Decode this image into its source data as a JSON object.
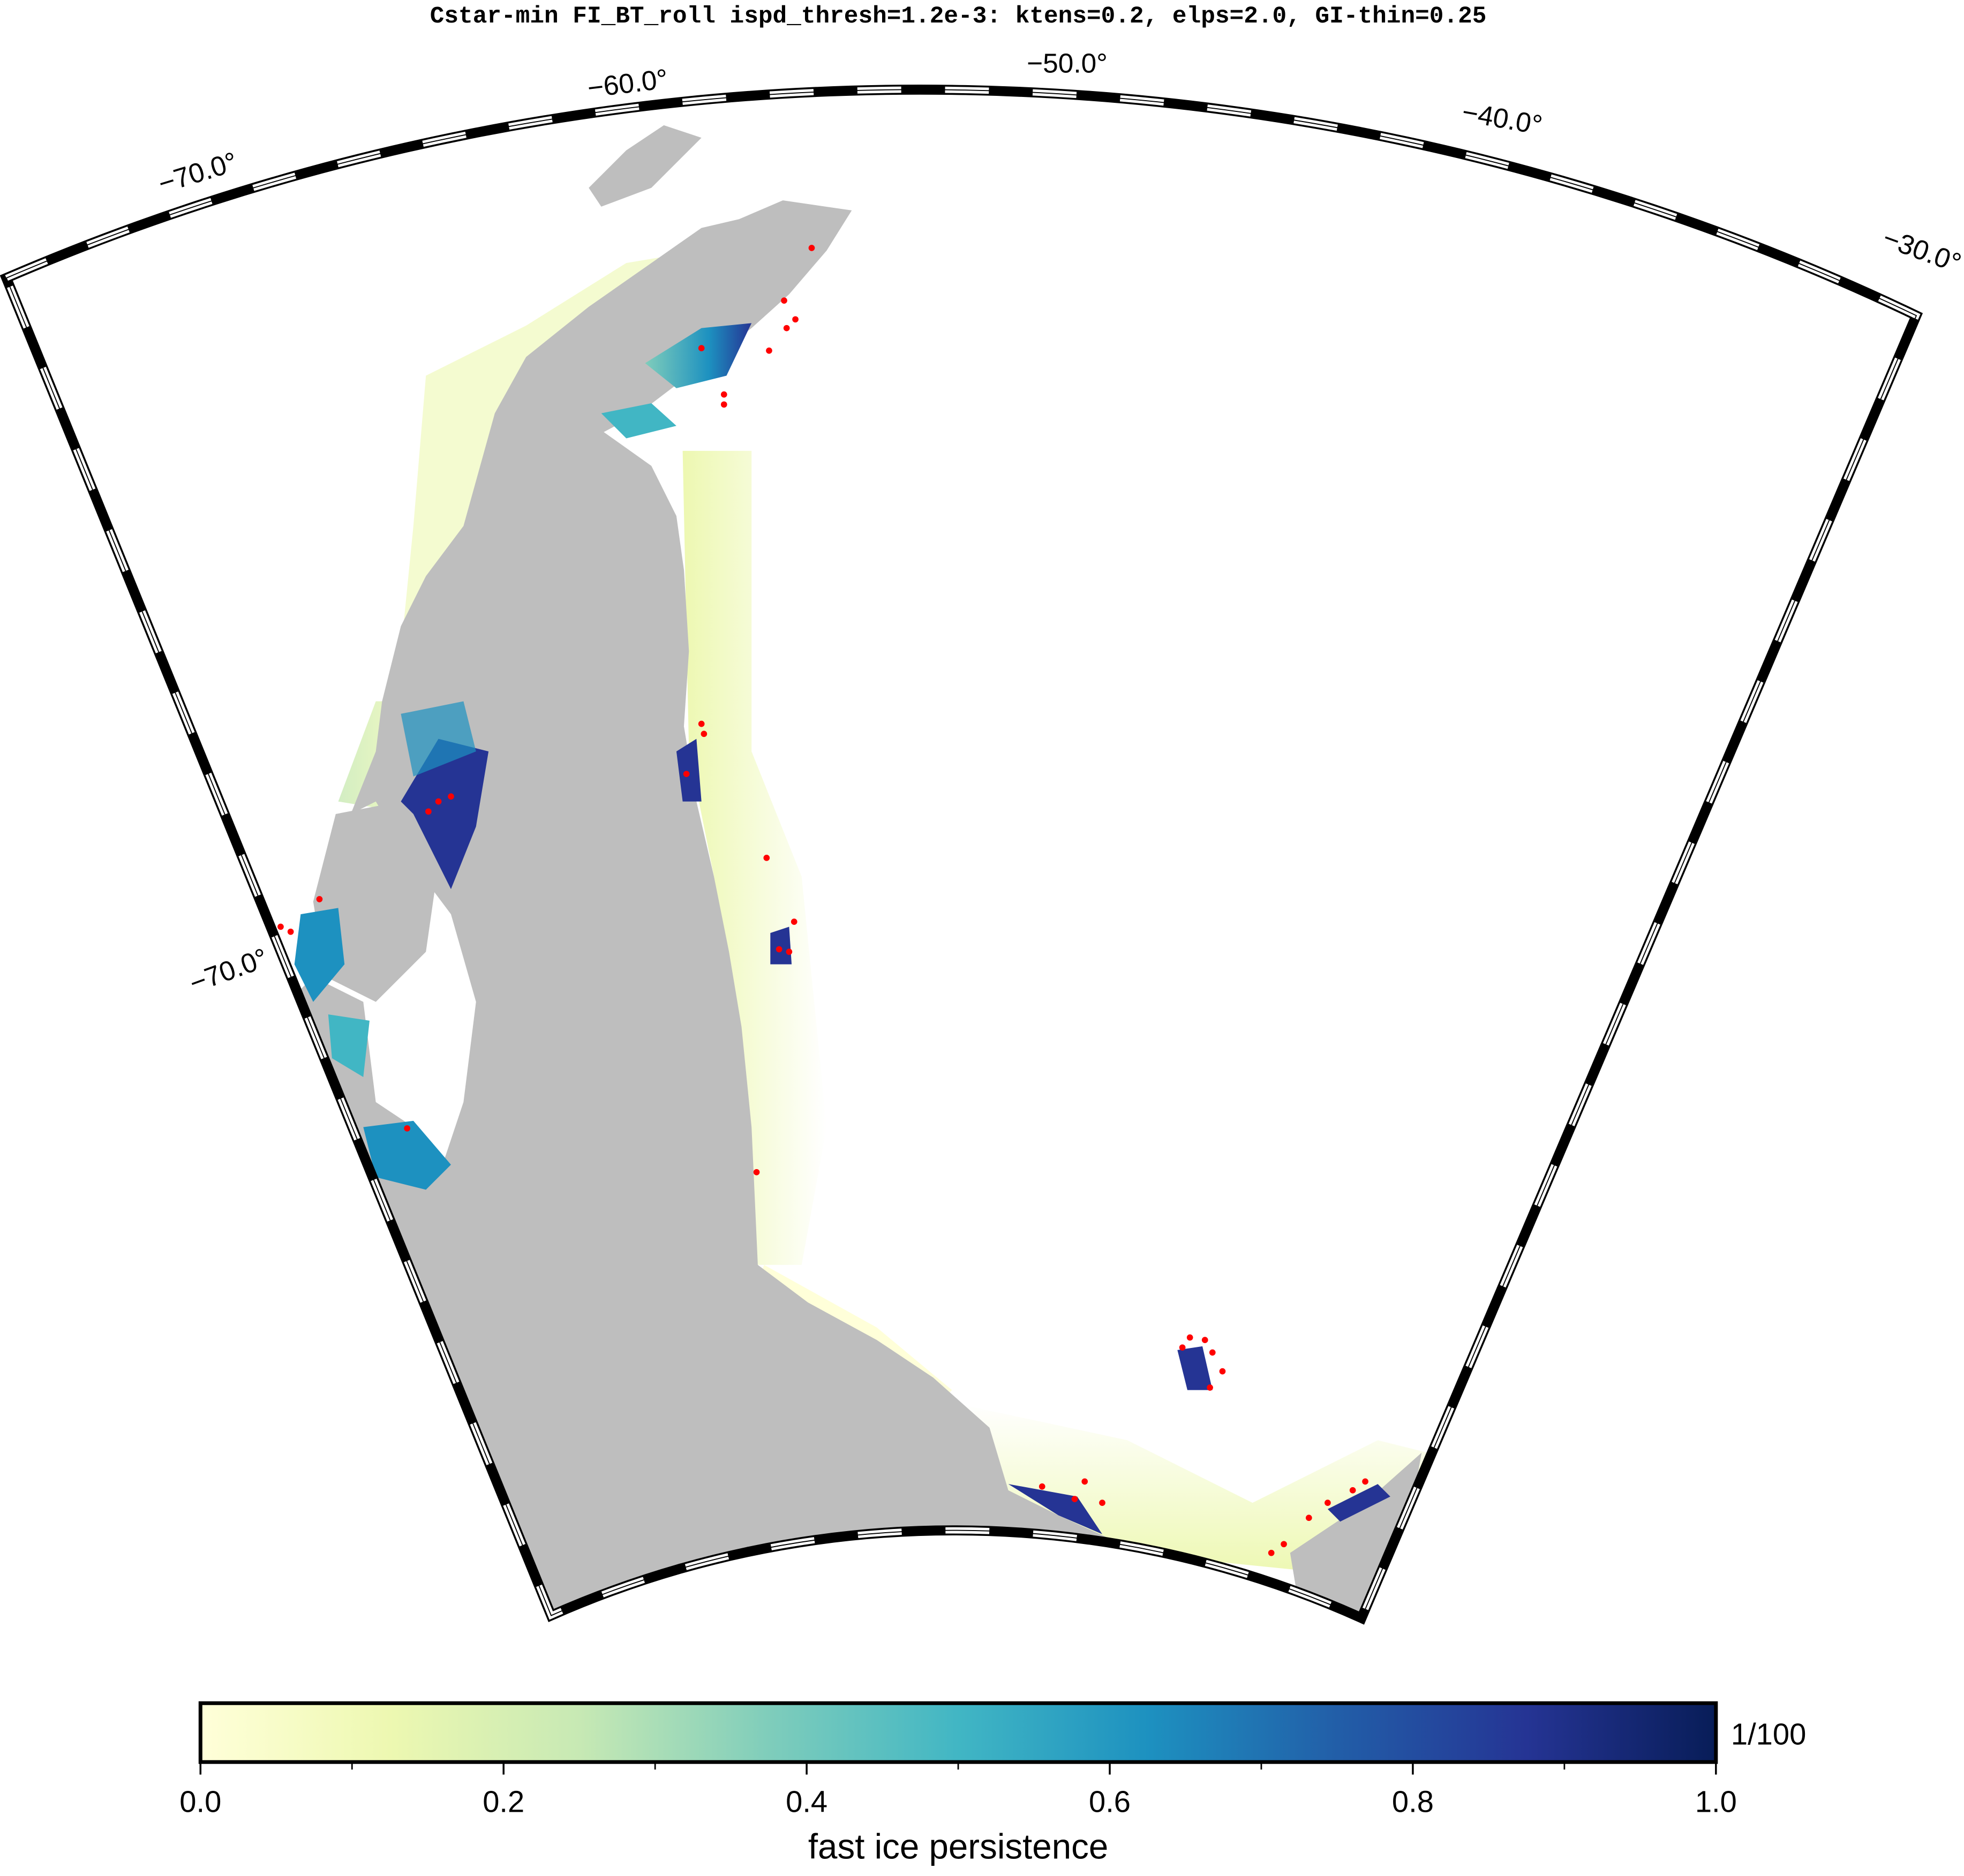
{
  "title": "Cstar-min FI_BT_roll ispd_thresh=1.2e-3: ktens=0.2, elps=2.0, GI-thin=0.25",
  "map": {
    "lon_labels": [
      "−70.0°",
      "−60.0°",
      "−50.0°",
      "−40.0°",
      "−30.0°"
    ],
    "lat_labels": [
      "−70.0°"
    ]
  },
  "colorbar": {
    "label": "fast ice persistence",
    "unit": "1/100",
    "lim": [
      0,
      1
    ],
    "ticks": [
      {
        "value": 0,
        "label": "0.0"
      },
      {
        "value": 0.2,
        "label": "0.2"
      },
      {
        "value": 0.4,
        "label": "0.4"
      },
      {
        "value": 0.6,
        "label": "0.6"
      },
      {
        "value": 0.8,
        "label": "0.8"
      },
      {
        "value": 1,
        "label": "1.0"
      }
    ],
    "minor_ticks": [
      0.1,
      0.3,
      0.5,
      0.7,
      0.9
    ],
    "colors": [
      "#ffffd9",
      "#edf8b1",
      "#c7e9b4",
      "#7fcdbb",
      "#41b6c4",
      "#1d91c0",
      "#225ea8",
      "#253494",
      "#081d58"
    ]
  }
}
